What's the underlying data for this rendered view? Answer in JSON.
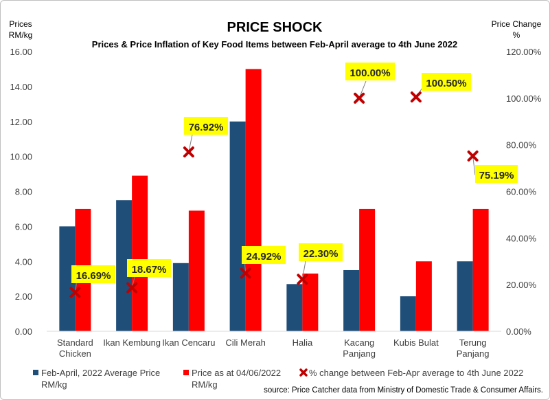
{
  "title": "PRICE SHOCK",
  "subtitle": "Prices & Price  Inflation of Key Food Items between Feb-April average to 4th June 2022",
  "left_axis_title": [
    "Prices",
    "RM/kg"
  ],
  "right_axis_title": [
    "Price Change",
    "%"
  ],
  "source": "source: Price Catcher data from Ministry of Domestic Trade & Consumer Affairs.",
  "legend": [
    {
      "label": [
        "Feb-April, 2022 Average Price",
        "RM/kg"
      ],
      "marker": "square"
    },
    {
      "label": [
        "Price as at 04/06/2022",
        "RM/kg"
      ],
      "marker": "square"
    },
    {
      "label": [
        "% change between Feb-Apr average to 4th June 2022"
      ],
      "marker": "cross"
    }
  ],
  "chart_data": {
    "type": "bar",
    "categories": [
      [
        "Standard",
        "Chicken"
      ],
      [
        "Ikan Kembung"
      ],
      [
        "Ikan Cencaru"
      ],
      [
        "Cili Merah"
      ],
      [
        "Halia"
      ],
      [
        "Kacang",
        "Panjang"
      ],
      [
        "Kubis Bulat"
      ],
      [
        "Terung",
        "Panjang"
      ]
    ],
    "series": [
      {
        "name": "Feb-April, 2022 Average Price RM/kg",
        "axis": "left",
        "type": "bar",
        "color": "#1f4e79",
        "values": [
          6.0,
          7.5,
          3.9,
          12.0,
          2.7,
          3.5,
          2.0,
          4.0
        ]
      },
      {
        "name": "Price as at 04/06/2022 RM/kg",
        "axis": "left",
        "type": "bar",
        "color": "#ff0000",
        "values": [
          7.0,
          8.9,
          6.9,
          15.0,
          3.3,
          7.0,
          4.0,
          7.0
        ]
      },
      {
        "name": "% change between Feb-Apr average to 4th June 2022",
        "axis": "right",
        "type": "scatter",
        "color": "#c00000",
        "values": [
          16.69,
          18.67,
          76.92,
          24.92,
          22.3,
          100.0,
          100.5,
          75.19
        ]
      }
    ],
    "data_labels": [
      "16.69%",
      "18.67%",
      "76.92%",
      "24.92%",
      "22.30%",
      "100.00%",
      "100.50%",
      "75.19%"
    ],
    "label_highlight_color": "#ffff00",
    "y_left": {
      "min": 0,
      "max": 16,
      "step": 2,
      "tick_labels": [
        "0.00",
        "2.00",
        "4.00",
        "6.00",
        "8.00",
        "10.00",
        "12.00",
        "14.00",
        "16.00"
      ]
    },
    "y_right": {
      "min": 0,
      "max": 120,
      "step": 20,
      "tick_labels": [
        "0.00%",
        "20.00%",
        "40.00%",
        "60.00%",
        "80.00%",
        "100.00%",
        "120.00%"
      ]
    },
    "grid": false,
    "legend_position": "bottom"
  }
}
